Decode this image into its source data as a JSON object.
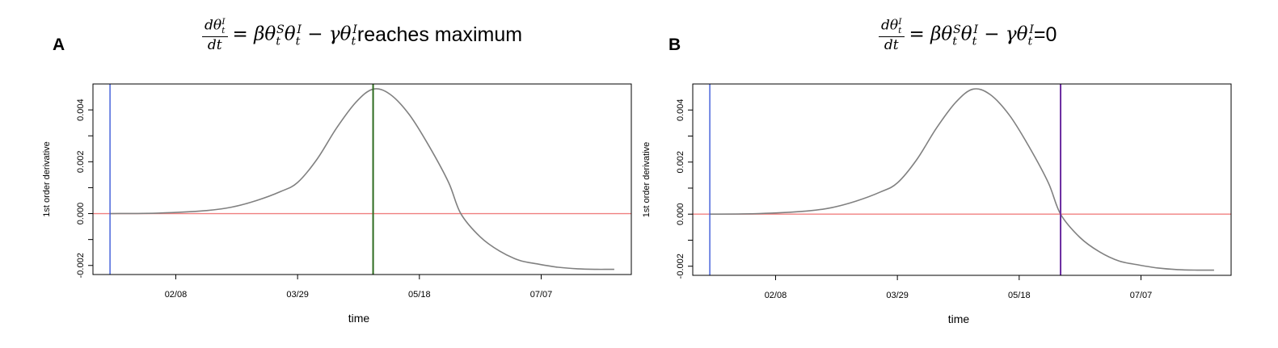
{
  "chart_data": [
    {
      "type": "line",
      "panel_label": "A",
      "title_math": "dθ_t^I/dt = βθ_t^Sθ_t^I − γθ_t^I",
      "title_suffix": " reaches maximum",
      "xlabel": "time",
      "ylabel": "1st order derivative",
      "x_tick_labels": [
        "02/08",
        "03/29",
        "05/18",
        "07/07"
      ],
      "y_tick_labels": [
        "-0.002",
        "0.000",
        "0.002",
        "0.004"
      ],
      "y_ticks": [
        -0.002,
        -0.001,
        0.0,
        0.001,
        0.002,
        0.003,
        0.004
      ],
      "xlim": [
        "2020-01-05",
        "2020-08-13"
      ],
      "ylim": [
        -0.00235,
        0.005
      ],
      "series": [
        {
          "color": "#808080",
          "x": [
            "2020-01-12",
            "2020-02-01",
            "2020-02-21",
            "2020-03-02",
            "2020-03-12",
            "2020-03-22",
            "2020-03-29",
            "2020-04-06",
            "2020-04-14",
            "2020-04-22",
            "2020-04-29",
            "2020-05-06",
            "2020-05-14",
            "2020-05-22",
            "2020-05-30",
            "2020-06-04",
            "2020-06-12",
            "2020-06-20",
            "2020-06-28",
            "2020-07-06",
            "2020-07-14",
            "2020-07-22",
            "2020-07-30",
            "2020-08-03",
            "2020-08-06"
          ],
          "y": [
            0.0,
            2e-05,
            0.00012,
            0.00025,
            0.0005,
            0.00085,
            0.0012,
            0.0021,
            0.0033,
            0.0043,
            0.0048,
            0.0046,
            0.0038,
            0.0026,
            0.0012,
            0.0,
            -0.0009,
            -0.00145,
            -0.0018,
            -0.00195,
            -0.00207,
            -0.00213,
            -0.00215,
            -0.00215,
            -0.00215
          ]
        }
      ],
      "hlines": [
        {
          "y": 0.0,
          "color": "#f08080"
        }
      ],
      "vlines": [
        {
          "x": "2020-01-12",
          "color": "#3c5ad8"
        },
        {
          "x": "2020-04-29",
          "color": "#2e6b1f"
        }
      ]
    },
    {
      "type": "line",
      "panel_label": "B",
      "title_math": "dθ_t^I/dt = βθ_t^Sθ_t^I − γθ_t^I",
      "title_suffix": "=0",
      "xlabel": "time",
      "ylabel": "1st order derivative",
      "x_tick_labels": [
        "02/08",
        "03/29",
        "05/18",
        "07/07"
      ],
      "y_tick_labels": [
        "-0.002",
        "0.000",
        "0.002",
        "0.004"
      ],
      "y_ticks": [
        -0.002,
        -0.001,
        0.0,
        0.001,
        0.002,
        0.003,
        0.004
      ],
      "xlim": [
        "2020-01-05",
        "2020-08-13"
      ],
      "ylim": [
        -0.00235,
        0.005
      ],
      "series": [
        {
          "color": "#808080",
          "x": [
            "2020-01-12",
            "2020-02-01",
            "2020-02-21",
            "2020-03-02",
            "2020-03-12",
            "2020-03-22",
            "2020-03-29",
            "2020-04-06",
            "2020-04-14",
            "2020-04-22",
            "2020-04-29",
            "2020-05-06",
            "2020-05-14",
            "2020-05-22",
            "2020-05-30",
            "2020-06-04",
            "2020-06-12",
            "2020-06-20",
            "2020-06-28",
            "2020-07-06",
            "2020-07-14",
            "2020-07-22",
            "2020-07-30",
            "2020-08-03",
            "2020-08-06"
          ],
          "y": [
            0.0,
            2e-05,
            0.00012,
            0.00025,
            0.0005,
            0.00085,
            0.0012,
            0.0021,
            0.0033,
            0.0043,
            0.0048,
            0.0046,
            0.0038,
            0.0026,
            0.0012,
            0.0,
            -0.0009,
            -0.00145,
            -0.0018,
            -0.00195,
            -0.00207,
            -0.00213,
            -0.00215,
            -0.00215,
            -0.00215
          ]
        }
      ],
      "hlines": [
        {
          "y": 0.0,
          "color": "#f08080"
        }
      ],
      "vlines": [
        {
          "x": "2020-01-12",
          "color": "#3c5ad8"
        },
        {
          "x": "2020-06-04",
          "color": "#6a2ba0"
        }
      ]
    }
  ]
}
